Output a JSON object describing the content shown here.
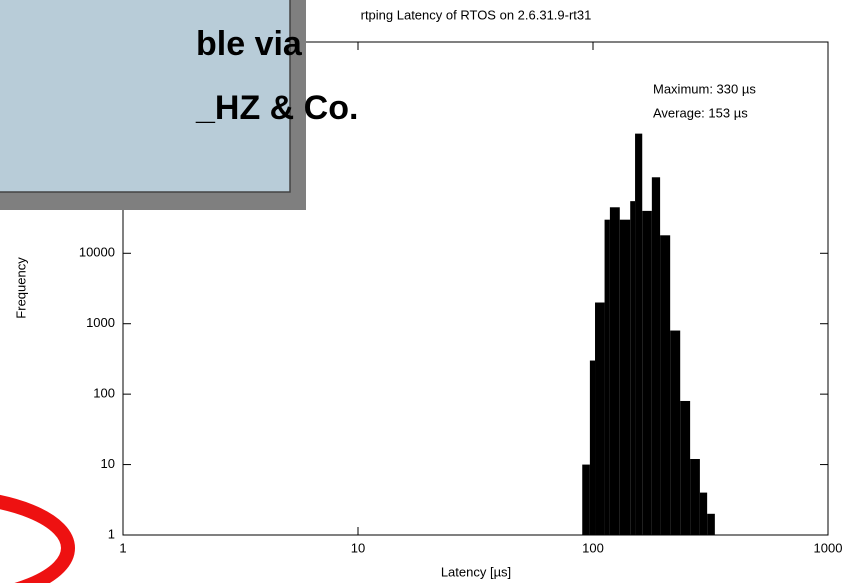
{
  "slide": {
    "lines": [
      "ble via",
      "_HZ & Co."
    ]
  },
  "chart_data": {
    "type": "histogram",
    "title": "rtping Latency of RTOS on 2.6.31.9-rt31",
    "x_label": "Latency [µs]",
    "y_label": "Frequency",
    "annotations": [
      "Maximum: 330 µs",
      "Average: 153 µs"
    ],
    "bins": [
      90,
      97,
      102,
      112,
      118,
      130,
      144,
      151,
      162,
      178,
      193,
      213,
      235,
      259,
      285,
      306,
      330
    ],
    "values": [
      10,
      300,
      2000,
      30000,
      45000,
      30000,
      55000,
      500000,
      40000,
      120000,
      18000,
      800,
      80,
      12,
      4,
      2
    ],
    "color": "#000000",
    "xscale": "log",
    "yscale": "log",
    "xlim": [
      1,
      1000
    ],
    "xticks": [
      1,
      10,
      100,
      1000
    ],
    "ylim": [
      1,
      10000000
    ],
    "yticks": [
      1,
      10,
      100,
      1000,
      10000
    ]
  }
}
